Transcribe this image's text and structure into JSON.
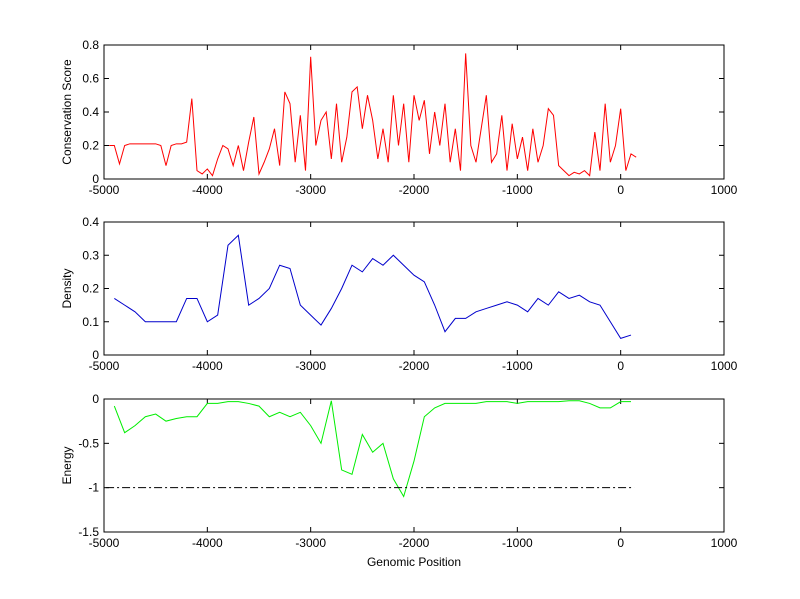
{
  "chart_data": [
    {
      "type": "line",
      "ylabel": "Conservation Score",
      "xlim": [
        -5000,
        1000
      ],
      "xticks": [
        -5000,
        -4000,
        -3000,
        -2000,
        -1000,
        0,
        1000
      ],
      "ylim": [
        0,
        0.8
      ],
      "yticks": [
        0,
        0.2,
        0.4,
        0.6,
        0.8
      ],
      "grid": false,
      "series": [
        {
          "color": "#ff0000",
          "style": "solid",
          "x": [
            -4950,
            -4900,
            -4850,
            -4800,
            -4750,
            -4700,
            -4650,
            -4600,
            -4550,
            -4500,
            -4450,
            -4400,
            -4350,
            -4300,
            -4250,
            -4200,
            -4150,
            -4100,
            -4050,
            -4000,
            -3950,
            -3900,
            -3850,
            -3800,
            -3750,
            -3700,
            -3650,
            -3600,
            -3550,
            -3500,
            -3450,
            -3400,
            -3350,
            -3300,
            -3250,
            -3200,
            -3150,
            -3100,
            -3050,
            -3000,
            -2950,
            -2900,
            -2850,
            -2800,
            -2750,
            -2700,
            -2650,
            -2600,
            -2550,
            -2500,
            -2450,
            -2400,
            -2350,
            -2300,
            -2250,
            -2200,
            -2150,
            -2100,
            -2050,
            -2000,
            -1950,
            -1900,
            -1850,
            -1800,
            -1750,
            -1700,
            -1650,
            -1600,
            -1550,
            -1500,
            -1450,
            -1400,
            -1350,
            -1300,
            -1250,
            -1200,
            -1150,
            -1100,
            -1050,
            -1000,
            -950,
            -900,
            -850,
            -800,
            -750,
            -700,
            -650,
            -600,
            -550,
            -500,
            -450,
            -400,
            -350,
            -300,
            -250,
            -200,
            -150,
            -100,
            -50,
            0,
            50,
            100,
            150
          ],
          "values": [
            0.2,
            0.2,
            0.09,
            0.2,
            0.21,
            0.21,
            0.21,
            0.21,
            0.21,
            0.21,
            0.2,
            0.08,
            0.2,
            0.21,
            0.21,
            0.22,
            0.48,
            0.05,
            0.03,
            0.06,
            0.02,
            0.12,
            0.2,
            0.18,
            0.08,
            0.2,
            0.05,
            0.22,
            0.37,
            0.03,
            0.1,
            0.18,
            0.3,
            0.08,
            0.52,
            0.45,
            0.1,
            0.38,
            0.05,
            0.73,
            0.2,
            0.35,
            0.4,
            0.12,
            0.45,
            0.1,
            0.25,
            0.52,
            0.55,
            0.3,
            0.5,
            0.35,
            0.12,
            0.3,
            0.1,
            0.5,
            0.2,
            0.45,
            0.1,
            0.5,
            0.35,
            0.47,
            0.15,
            0.4,
            0.2,
            0.45,
            0.1,
            0.3,
            0.05,
            0.75,
            0.2,
            0.1,
            0.3,
            0.5,
            0.1,
            0.15,
            0.38,
            0.05,
            0.33,
            0.12,
            0.25,
            0.05,
            0.3,
            0.1,
            0.2,
            0.42,
            0.38,
            0.08,
            0.05,
            0.02,
            0.04,
            0.03,
            0.05,
            0.02,
            0.28,
            0.05,
            0.45,
            0.1,
            0.2,
            0.42,
            0.05,
            0.15,
            0.13
          ]
        }
      ]
    },
    {
      "type": "line",
      "ylabel": "Density",
      "xlim": [
        -5000,
        1000
      ],
      "xticks": [
        -5000,
        -4000,
        -3000,
        -2000,
        -1000,
        0,
        1000
      ],
      "ylim": [
        0,
        0.4
      ],
      "yticks": [
        0,
        0.1,
        0.2,
        0.3,
        0.4
      ],
      "grid": false,
      "series": [
        {
          "color": "#0000cc",
          "style": "solid",
          "x": [
            -4900,
            -4800,
            -4700,
            -4600,
            -4500,
            -4400,
            -4300,
            -4200,
            -4100,
            -4000,
            -3900,
            -3800,
            -3700,
            -3600,
            -3500,
            -3400,
            -3300,
            -3200,
            -3100,
            -3000,
            -2900,
            -2800,
            -2700,
            -2600,
            -2500,
            -2400,
            -2300,
            -2200,
            -2100,
            -2000,
            -1900,
            -1800,
            -1700,
            -1600,
            -1500,
            -1400,
            -1300,
            -1200,
            -1100,
            -1000,
            -900,
            -800,
            -700,
            -600,
            -500,
            -400,
            -300,
            -200,
            -100,
            0,
            100
          ],
          "values": [
            0.17,
            0.15,
            0.13,
            0.1,
            0.1,
            0.1,
            0.1,
            0.17,
            0.17,
            0.1,
            0.12,
            0.33,
            0.36,
            0.15,
            0.17,
            0.2,
            0.27,
            0.26,
            0.15,
            0.12,
            0.09,
            0.14,
            0.2,
            0.27,
            0.25,
            0.29,
            0.27,
            0.3,
            0.27,
            0.24,
            0.22,
            0.15,
            0.07,
            0.11,
            0.11,
            0.13,
            0.14,
            0.15,
            0.16,
            0.15,
            0.13,
            0.17,
            0.15,
            0.19,
            0.17,
            0.18,
            0.16,
            0.15,
            0.1,
            0.05,
            0.06
          ]
        }
      ]
    },
    {
      "type": "line",
      "ylabel": "Energy",
      "xlabel": "Genomic Position",
      "xlim": [
        -5000,
        1000
      ],
      "xticks": [
        -5000,
        -4000,
        -3000,
        -2000,
        -1000,
        0,
        1000
      ],
      "ylim": [
        -1.5,
        0
      ],
      "yticks": [
        -1.5,
        -1,
        -0.5,
        0
      ],
      "grid": false,
      "series": [
        {
          "color": "#00ee00",
          "style": "solid",
          "x": [
            -4900,
            -4800,
            -4700,
            -4600,
            -4500,
            -4400,
            -4300,
            -4200,
            -4100,
            -4000,
            -3900,
            -3800,
            -3700,
            -3600,
            -3500,
            -3400,
            -3300,
            -3200,
            -3100,
            -3000,
            -2900,
            -2800,
            -2700,
            -2600,
            -2500,
            -2400,
            -2300,
            -2200,
            -2100,
            -2000,
            -1900,
            -1800,
            -1700,
            -1600,
            -1500,
            -1400,
            -1300,
            -1200,
            -1100,
            -1000,
            -900,
            -800,
            -700,
            -600,
            -500,
            -400,
            -300,
            -200,
            -100,
            0,
            100
          ],
          "values": [
            -0.08,
            -0.38,
            -0.3,
            -0.2,
            -0.17,
            -0.25,
            -0.22,
            -0.2,
            -0.2,
            -0.05,
            -0.05,
            -0.03,
            -0.03,
            -0.05,
            -0.08,
            -0.2,
            -0.15,
            -0.2,
            -0.15,
            -0.3,
            -0.5,
            -0.02,
            -0.8,
            -0.85,
            -0.4,
            -0.6,
            -0.5,
            -0.9,
            -1.1,
            -0.7,
            -0.2,
            -0.1,
            -0.05,
            -0.05,
            -0.05,
            -0.05,
            -0.03,
            -0.03,
            -0.03,
            -0.05,
            -0.03,
            -0.03,
            -0.03,
            -0.03,
            -0.02,
            -0.02,
            -0.05,
            -0.1,
            -0.1,
            -0.03,
            -0.03
          ]
        },
        {
          "color": "#000000",
          "style": "dashdot",
          "x": [
            -4980,
            130
          ],
          "values": [
            -1,
            -1
          ]
        }
      ]
    }
  ]
}
